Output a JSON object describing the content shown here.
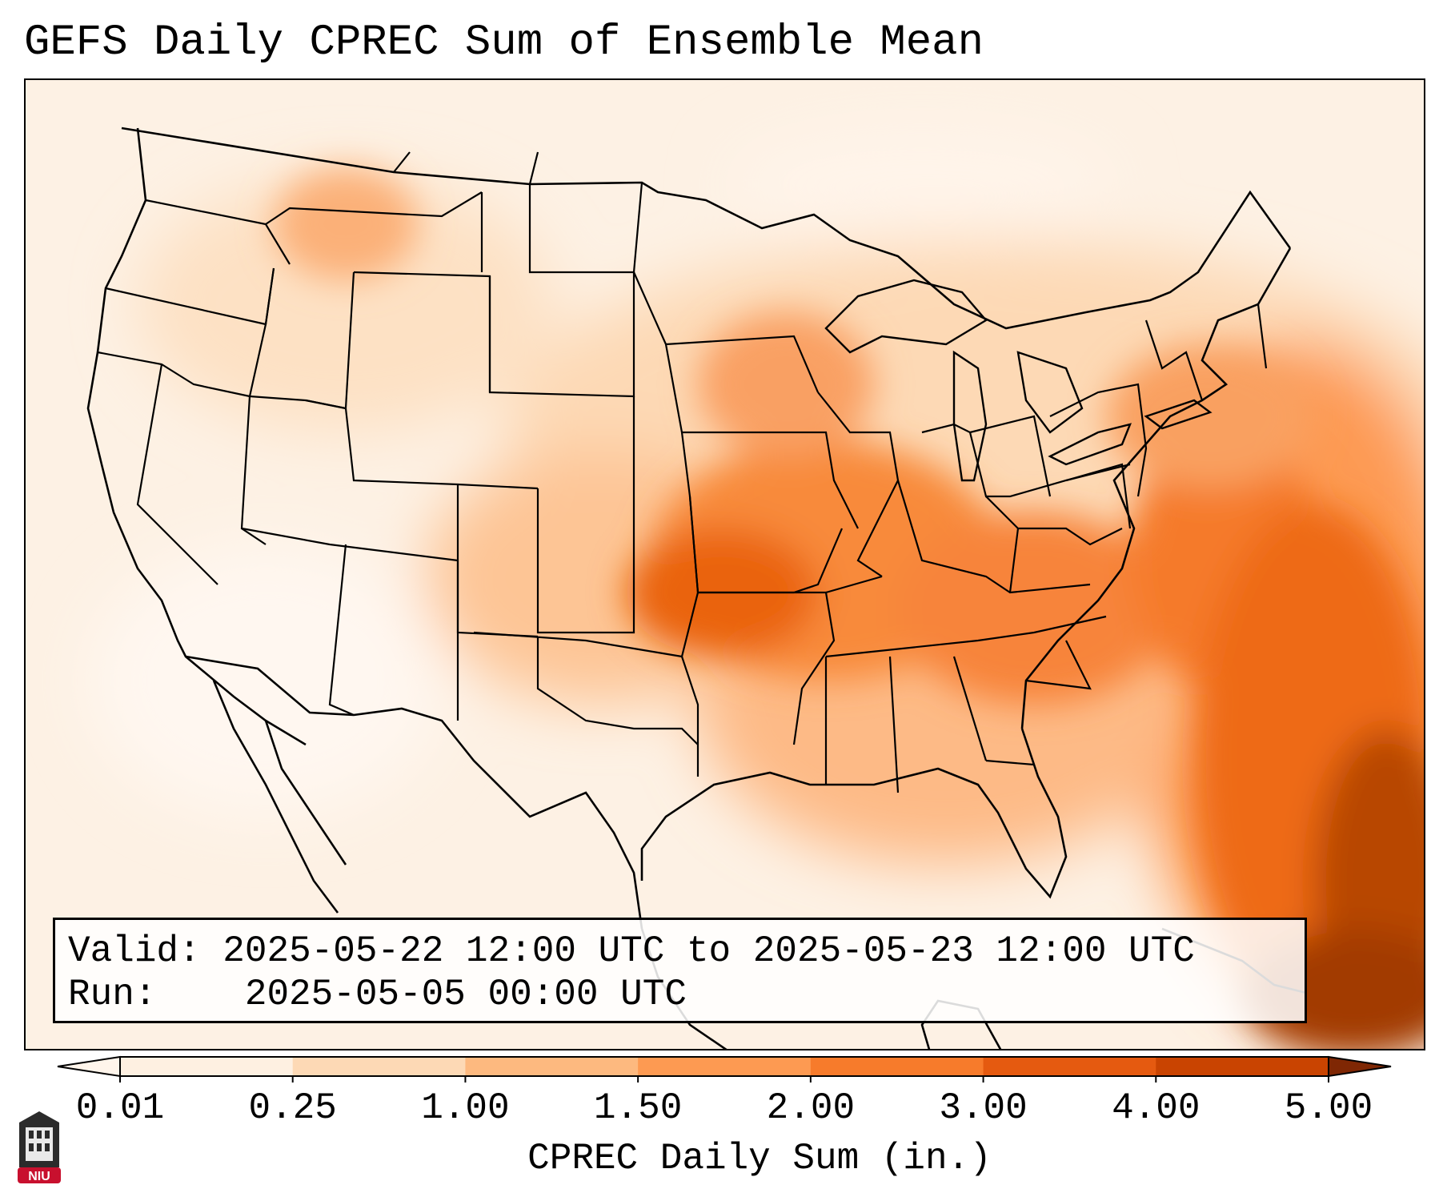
{
  "title": "GEFS Daily CPREC Sum of Ensemble Mean",
  "info": {
    "valid_label": "Valid:",
    "valid_value": "2025-05-22 12:00 UTC to 2025-05-23 12:00 UTC",
    "run_label": "Run:",
    "run_value": "2025-05-05 00:00 UTC"
  },
  "colorbar": {
    "label": "CPREC Daily Sum (in.)",
    "ticks": [
      "0.01",
      "0.25",
      "1.00",
      "1.50",
      "2.00",
      "3.00",
      "4.00",
      "5.00"
    ],
    "colors": [
      "#fef0e1",
      "#fdd9b5",
      "#fdb97f",
      "#fd9a52",
      "#f77b2b",
      "#e55a10",
      "#c94401"
    ],
    "under_color": "#fff5eb",
    "over_color": "#7f2704",
    "extend": "both"
  },
  "logo": {
    "text": "NIU",
    "colors": {
      "tower": "#2b2b2b",
      "shield": "#c8102e"
    }
  },
  "map": {
    "projection": "Lambert Conformal",
    "region": "Contiguous United States",
    "boundaries": [
      "coastlines",
      "country borders",
      "state borders"
    ],
    "field_colors": {
      "light": "#fde3c8",
      "medium": "#fdae6b",
      "strong": "#f16913",
      "peak": "#a63603"
    }
  }
}
